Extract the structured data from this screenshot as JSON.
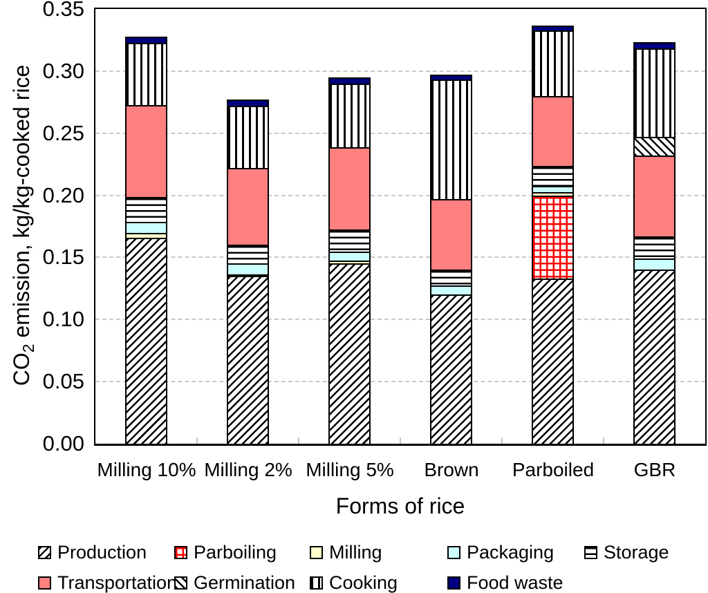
{
  "chart_data": {
    "type": "bar",
    "stacked": true,
    "xlabel": "Forms of rice",
    "ylabel": {
      "prefix": "CO",
      "subscript": "2",
      "rest": " emission, kg/kg-cooked rice"
    },
    "ylabel_text": "CO2 emission, kg/kg-cooked rice",
    "ylim": [
      0,
      0.35
    ],
    "ytick_step": 0.05,
    "ytick_labels": [
      "0.00",
      "0.05",
      "0.10",
      "0.15",
      "0.20",
      "0.25",
      "0.30",
      "0.35"
    ],
    "grid": "horizontal dashed, every 0.05",
    "categories": [
      "Milling 10%",
      "Milling 2%",
      "Milling 5%",
      "Brown",
      "Parboiled",
      "GBR"
    ],
    "series": [
      {
        "name": "Production",
        "pattern": "production",
        "values": [
          0.166,
          0.135,
          0.145,
          0.12,
          0.133,
          0.14
        ]
      },
      {
        "name": "Parboiling",
        "pattern": "parboiling",
        "values": [
          0,
          0,
          0,
          0,
          0.067,
          0
        ]
      },
      {
        "name": "Milling",
        "pattern": "milling",
        "values": [
          0.004,
          0.001,
          0.002,
          0,
          0.003,
          0
        ]
      },
      {
        "name": "Packaging",
        "pattern": "packaging",
        "values": [
          0.009,
          0.009,
          0.007,
          0.007,
          0.005,
          0.009
        ]
      },
      {
        "name": "Storage",
        "pattern": "storage",
        "values": [
          0.02,
          0.015,
          0.018,
          0.013,
          0.016,
          0.018
        ]
      },
      {
        "name": "Transportation",
        "pattern": "transportation",
        "values": [
          0.074,
          0.062,
          0.066,
          0.057,
          0.056,
          0.065
        ]
      },
      {
        "name": "Germination",
        "pattern": "germination",
        "values": [
          0,
          0,
          0,
          0,
          0,
          0.015
        ]
      },
      {
        "name": "Cooking",
        "pattern": "cooking",
        "values": [
          0.05,
          0.05,
          0.051,
          0.096,
          0.053,
          0.071
        ]
      },
      {
        "name": "Food waste",
        "pattern": "foodwaste",
        "values": [
          0.005,
          0.005,
          0.005,
          0.004,
          0.004,
          0.005
        ]
      }
    ],
    "totals": [
      0.328,
      0.277,
      0.294,
      0.297,
      0.337,
      0.323
    ],
    "legend_position": "bottom",
    "legend_rows": [
      [
        "Production",
        "Parboiling",
        "Milling",
        "Packaging",
        "Storage"
      ],
      [
        "Transportation",
        "Germination",
        "Cooking",
        "Food waste"
      ]
    ]
  },
  "colors": {
    "transportation": "#FF8080",
    "packaging": "#CCFFFF",
    "milling": "#FFFFCC",
    "food_waste": "#000080",
    "parboiling_lines": "#FF0000",
    "hatch_lines": "#000000",
    "gridline": "#C9C9C9",
    "frame": "#000000",
    "background": "#FFFFFF"
  }
}
